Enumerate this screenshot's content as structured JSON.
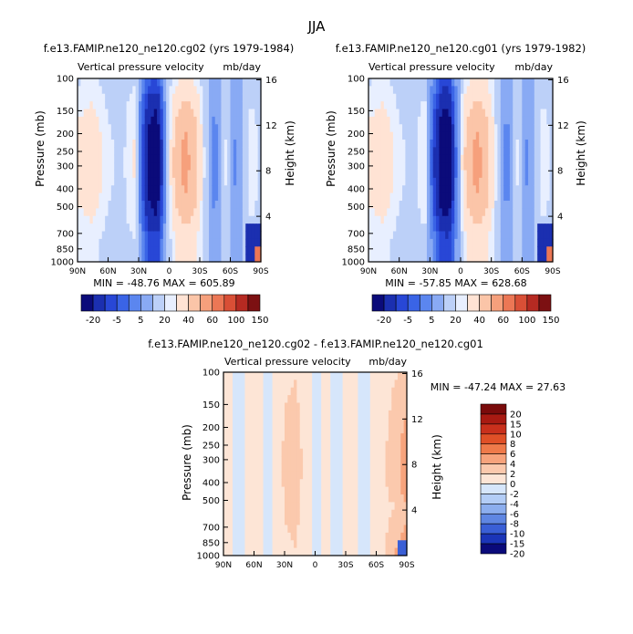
{
  "page_title": "JJA",
  "panels": [
    {
      "run_title": "f.e13.FAMIP.ne120_ne120.cg02 (yrs 1979-1984)",
      "subtitle": "Vertical pressure velocity",
      "units": "mb/day",
      "ylabel": "Pressure (mb)",
      "y2label": "Height (km)",
      "stats": "MIN = -48.76   MAX = 605.89"
    },
    {
      "run_title": "f.e13.FAMIP.ne120_ne120.cg01 (yrs 1979-1982)",
      "subtitle": "Vertical pressure velocity",
      "units": "mb/day",
      "ylabel": "Pressure (mb)",
      "y2label": "Height (km)",
      "stats": "MIN = -57.85   MAX = 628.68"
    },
    {
      "run_title": "f.e13.FAMIP.ne120_ne120.cg02 - f.e13.FAMIP.ne120_ne120.cg01",
      "subtitle": "Vertical pressure velocity",
      "units": "mb/day",
      "ylabel": "Pressure (mb)",
      "y2label": "Height (km)",
      "stats": "MIN = -47.24   MAX =  27.63"
    }
  ],
  "chart_data": [
    {
      "type": "heatmap",
      "panel": "cg02",
      "x_ticks": [
        "90N",
        "60N",
        "30N",
        "0",
        "30S",
        "60S",
        "90S"
      ],
      "x_values": [
        90,
        60,
        30,
        0,
        -30,
        -60,
        -90
      ],
      "y_ticks": [
        "100",
        "150",
        "200",
        "250",
        "300",
        "400",
        "500",
        "700",
        "850",
        "1000"
      ],
      "y_values_mb": [
        100,
        150,
        200,
        250,
        300,
        400,
        500,
        700,
        850,
        1000
      ],
      "y2_ticks": [
        "4",
        "8",
        "12",
        "16"
      ],
      "y2_values_km": [
        4,
        8,
        12,
        16
      ],
      "ylim_mb": [
        1000,
        100
      ],
      "y_scale": "log",
      "colorbar_labels": [
        "-20",
        "-5",
        "5",
        "20",
        "40",
        "60",
        "100",
        "150"
      ],
      "min": -48.76,
      "max": 605.89,
      "lat_profile": [
        {
          "lat": 90,
          "v": 12
        },
        {
          "lat": 75,
          "v": 16
        },
        {
          "lat": 60,
          "v": 6
        },
        {
          "lat": 45,
          "v": 4
        },
        {
          "lat": 35,
          "v": 12
        },
        {
          "lat": 20,
          "v": -35
        },
        {
          "lat": 12,
          "v": -42
        },
        {
          "lat": 5,
          "v": -10
        },
        {
          "lat": -5,
          "v": 22
        },
        {
          "lat": -15,
          "v": 34
        },
        {
          "lat": -25,
          "v": 26
        },
        {
          "lat": -35,
          "v": 4
        },
        {
          "lat": -45,
          "v": -8
        },
        {
          "lat": -55,
          "v": 6
        },
        {
          "lat": -65,
          "v": -6
        },
        {
          "lat": -80,
          "v": 8
        },
        {
          "lat": -90,
          "v": 4
        }
      ]
    },
    {
      "type": "heatmap",
      "panel": "cg01",
      "x_ticks": [
        "90N",
        "60N",
        "30N",
        "0",
        "30S",
        "60S",
        "90S"
      ],
      "x_values": [
        90,
        60,
        30,
        0,
        -30,
        -60,
        -90
      ],
      "y_ticks": [
        "100",
        "150",
        "200",
        "250",
        "300",
        "400",
        "500",
        "700",
        "850",
        "1000"
      ],
      "y_values_mb": [
        100,
        150,
        200,
        250,
        300,
        400,
        500,
        700,
        850,
        1000
      ],
      "y2_ticks": [
        "4",
        "8",
        "12",
        "16"
      ],
      "y2_values_km": [
        4,
        8,
        12,
        16
      ],
      "ylim_mb": [
        1000,
        100
      ],
      "y_scale": "log",
      "colorbar_labels": [
        "-20",
        "-5",
        "5",
        "20",
        "40",
        "60",
        "100",
        "150"
      ],
      "min": -57.85,
      "max": 628.68,
      "lat_profile": [
        {
          "lat": 90,
          "v": 12
        },
        {
          "lat": 75,
          "v": 16
        },
        {
          "lat": 60,
          "v": 6
        },
        {
          "lat": 45,
          "v": 4
        },
        {
          "lat": 35,
          "v": 10
        },
        {
          "lat": 20,
          "v": -38
        },
        {
          "lat": 12,
          "v": -45
        },
        {
          "lat": 5,
          "v": -12
        },
        {
          "lat": -5,
          "v": 22
        },
        {
          "lat": -15,
          "v": 34
        },
        {
          "lat": -25,
          "v": 27
        },
        {
          "lat": -35,
          "v": 5
        },
        {
          "lat": -45,
          "v": -8
        },
        {
          "lat": -55,
          "v": 6
        },
        {
          "lat": -65,
          "v": -6
        },
        {
          "lat": -80,
          "v": 8
        },
        {
          "lat": -90,
          "v": 4
        }
      ]
    },
    {
      "type": "heatmap",
      "panel": "difference",
      "x_ticks": [
        "90N",
        "60N",
        "30N",
        "0",
        "30S",
        "60S",
        "90S"
      ],
      "x_values": [
        90,
        60,
        30,
        0,
        -30,
        -60,
        -90
      ],
      "y_ticks": [
        "100",
        "150",
        "200",
        "250",
        "300",
        "400",
        "500",
        "700",
        "850",
        "1000"
      ],
      "y_values_mb": [
        100,
        150,
        200,
        250,
        300,
        400,
        500,
        700,
        850,
        1000
      ],
      "y2_ticks": [
        "4",
        "8",
        "12",
        "16"
      ],
      "y2_values_km": [
        4,
        8,
        12,
        16
      ],
      "ylim_mb": [
        1000,
        100
      ],
      "y_scale": "log",
      "colorbar_labels": [
        "20",
        "15",
        "10",
        "8",
        "6",
        "4",
        "2",
        "0",
        "-2",
        "-4",
        "-6",
        "-8",
        "-10",
        "-15",
        "-20"
      ],
      "min": -47.24,
      "max": 27.63,
      "lat_profile": [
        {
          "lat": 90,
          "v": 0.5
        },
        {
          "lat": 75,
          "v": -0.5
        },
        {
          "lat": 60,
          "v": 0.5
        },
        {
          "lat": 45,
          "v": -0.5
        },
        {
          "lat": 30,
          "v": 2
        },
        {
          "lat": 20,
          "v": 3
        },
        {
          "lat": 10,
          "v": 1
        },
        {
          "lat": 0,
          "v": -0.5
        },
        {
          "lat": -10,
          "v": 0.5
        },
        {
          "lat": -20,
          "v": -0.5
        },
        {
          "lat": -35,
          "v": 0.5
        },
        {
          "lat": -50,
          "v": -0.5
        },
        {
          "lat": -65,
          "v": 1
        },
        {
          "lat": -80,
          "v": 3
        },
        {
          "lat": -90,
          "v": 4
        }
      ]
    }
  ],
  "colors": {
    "abs_scale": [
      "#0b0b7a",
      "#1b2fb0",
      "#2847d6",
      "#3a64e6",
      "#5b86ef",
      "#89aaf4",
      "#bcd0f8",
      "#e8efff",
      "#ffe3d4",
      "#fbc5a8",
      "#f6a07c",
      "#ec7755",
      "#d94f36",
      "#b62a22",
      "#7c1012"
    ],
    "diff_scale": [
      "#7a0b0b",
      "#a81a12",
      "#c9301c",
      "#e05027",
      "#ef7a4a",
      "#f7a37c",
      "#fbc9ad",
      "#fde5d6",
      "#d6e6fb",
      "#b3cdf6",
      "#8caeee",
      "#5f86e2",
      "#3a5fd6",
      "#1b35b8",
      "#0a0a7a"
    ]
  }
}
